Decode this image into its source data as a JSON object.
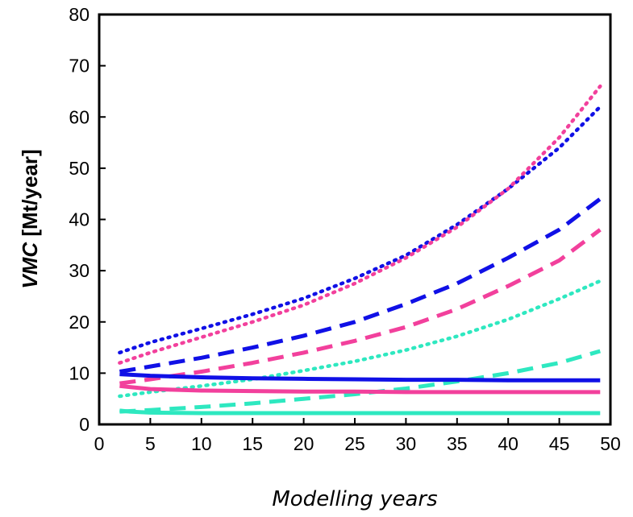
{
  "chart_data": {
    "type": "line",
    "xlabel": "Modelling years",
    "ylabel_italic": "VMC",
    "ylabel_rest": " [Mt/year]",
    "xlim": [
      0,
      50
    ],
    "ylim": [
      0,
      80
    ],
    "xticks": [
      0,
      5,
      10,
      15,
      20,
      25,
      30,
      35,
      40,
      45,
      50
    ],
    "yticks": [
      0,
      10,
      20,
      30,
      40,
      50,
      60,
      70,
      80
    ],
    "grid": false,
    "legend": "none",
    "series": [
      {
        "color": "#1010e6",
        "style": "dotted",
        "x": [
          2,
          5,
          10,
          15,
          20,
          25,
          30,
          35,
          40,
          45,
          49
        ],
        "y": [
          14,
          16,
          18.7,
          21.5,
          24.6,
          28.5,
          33,
          39,
          46,
          54,
          62
        ]
      },
      {
        "color": "#f2409c",
        "style": "dotted",
        "x": [
          2,
          5,
          10,
          15,
          20,
          25,
          30,
          35,
          40,
          45,
          49
        ],
        "y": [
          12,
          14,
          17,
          20,
          23.3,
          27.5,
          32.5,
          38.5,
          46,
          56,
          66
        ]
      },
      {
        "color": "#1010e6",
        "style": "dashed",
        "x": [
          2,
          5,
          10,
          15,
          20,
          25,
          30,
          35,
          40,
          45,
          49
        ],
        "y": [
          10.3,
          11.3,
          13,
          15,
          17.3,
          20,
          23.5,
          27.5,
          32.5,
          38,
          44
        ]
      },
      {
        "color": "#f2409c",
        "style": "dashed",
        "x": [
          2,
          5,
          10,
          15,
          20,
          25,
          30,
          35,
          40,
          45,
          49
        ],
        "y": [
          8,
          8.8,
          10.3,
          12,
          14,
          16.3,
          19,
          22.5,
          27,
          32,
          38
        ]
      },
      {
        "color": "#2ee8c0",
        "style": "dotted",
        "x": [
          2,
          5,
          10,
          15,
          20,
          25,
          30,
          35,
          40,
          45,
          49
        ],
        "y": [
          5.5,
          6.3,
          7.5,
          8.8,
          10.5,
          12.3,
          14.5,
          17.2,
          20.5,
          24.5,
          28
        ]
      },
      {
        "color": "#2ee8c0",
        "style": "dashed",
        "x": [
          2,
          5,
          10,
          15,
          20,
          25,
          30,
          35,
          40,
          45,
          49
        ],
        "y": [
          2.5,
          2.8,
          3.4,
          4.1,
          5,
          5.9,
          7,
          8.4,
          10,
          12,
          14.3
        ]
      },
      {
        "color": "#1010e6",
        "style": "solid",
        "x": [
          2,
          5,
          10,
          15,
          20,
          25,
          30,
          35,
          40,
          45,
          49
        ],
        "y": [
          9.8,
          9.5,
          9.2,
          9.0,
          8.9,
          8.8,
          8.7,
          8.7,
          8.6,
          8.6,
          8.6
        ]
      },
      {
        "color": "#f2409c",
        "style": "solid",
        "x": [
          2,
          3,
          5,
          10,
          15,
          20,
          25,
          30,
          35,
          40,
          45,
          49
        ],
        "y": [
          7.5,
          7.3,
          6.9,
          6.6,
          6.5,
          6.4,
          6.4,
          6.3,
          6.3,
          6.3,
          6.3,
          6.3
        ]
      },
      {
        "color": "#2ee8c0",
        "style": "solid",
        "x": [
          2,
          3,
          5,
          10,
          15,
          20,
          25,
          30,
          35,
          40,
          45,
          49
        ],
        "y": [
          2.7,
          2.5,
          2.3,
          2.2,
          2.2,
          2.2,
          2.2,
          2.2,
          2.2,
          2.2,
          2.2,
          2.2
        ]
      }
    ]
  }
}
